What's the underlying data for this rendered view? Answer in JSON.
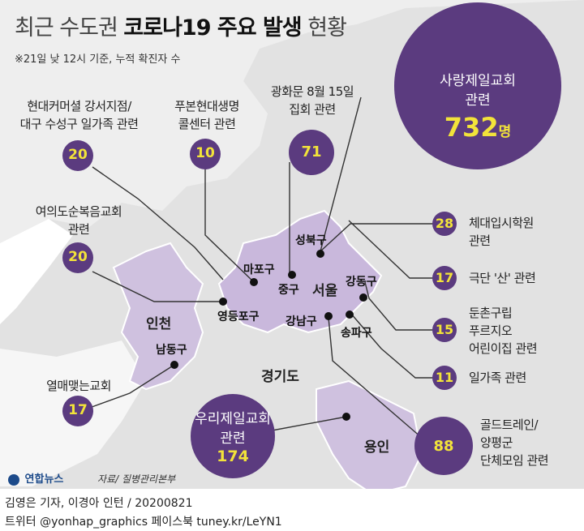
{
  "title": {
    "part1": "최근 수도권",
    "part2": "코로나19 주요 발생",
    "part3": "현황"
  },
  "subtitle": "※21일 낮 12시 기준, 누적 확진자 수",
  "clusters": [
    {
      "label_line1": "현대커머셜 강서지점/",
      "label_line2": "대구 수성구 일가족 관련",
      "count": "20"
    },
    {
      "label_line1": "푸본현대생명",
      "label_line2": "콜센터 관련",
      "count": "10"
    },
    {
      "label_line1": "광화문 8월 15일",
      "label_line2": "집회 관련",
      "count": "71"
    },
    {
      "label_line1": "여의도순복음교회",
      "label_line2": "관련",
      "count": "20"
    },
    {
      "label_line1": "사랑제일교회",
      "label_line2": "관련",
      "count": "732",
      "unit": "명"
    },
    {
      "label_line1": "체대입시학원",
      "label_line2": "관련",
      "count": "28"
    },
    {
      "label_line1": "극단 '산' 관련",
      "count": "17"
    },
    {
      "label_line1": "둔촌구립",
      "label_line2": "푸르지오",
      "label_line3": "어린이집 관련",
      "count": "15"
    },
    {
      "label_line1": "일가족 관련",
      "count": "11"
    },
    {
      "label_line1": "열매맺는교회",
      "count": "17"
    },
    {
      "label_line1": "우리제일교회",
      "label_line2": "관련",
      "count": "174"
    },
    {
      "label_line1": "골드트레인/",
      "label_line2": "양평군",
      "label_line3": "단체모임 관련",
      "count": "88"
    }
  ],
  "districts": {
    "seongbuk": "성북구",
    "mapo": "마포구",
    "jung": "중구",
    "gangdong": "강동구",
    "yeongdeungpo": "영등포구",
    "gangnam": "강남구",
    "songpa": "송파구",
    "namdong": "남동구"
  },
  "regions": {
    "seoul": "서울",
    "incheon": "인천",
    "gyeonggi": "경기도",
    "yongin": "용인"
  },
  "colors": {
    "circle": "#5b3b7f",
    "number": "#f2e33a",
    "region_fill": "#c9b8dc",
    "land": "#e2e2e2"
  },
  "footer": {
    "logo": "연합뉴스",
    "source": "자료/ 질병관리본부",
    "credit": "김영은 기자, 이경아 인턴 / 20200821",
    "social": "트위터 @yonhap_graphics  페이스북 tuney.kr/LeYN1"
  }
}
